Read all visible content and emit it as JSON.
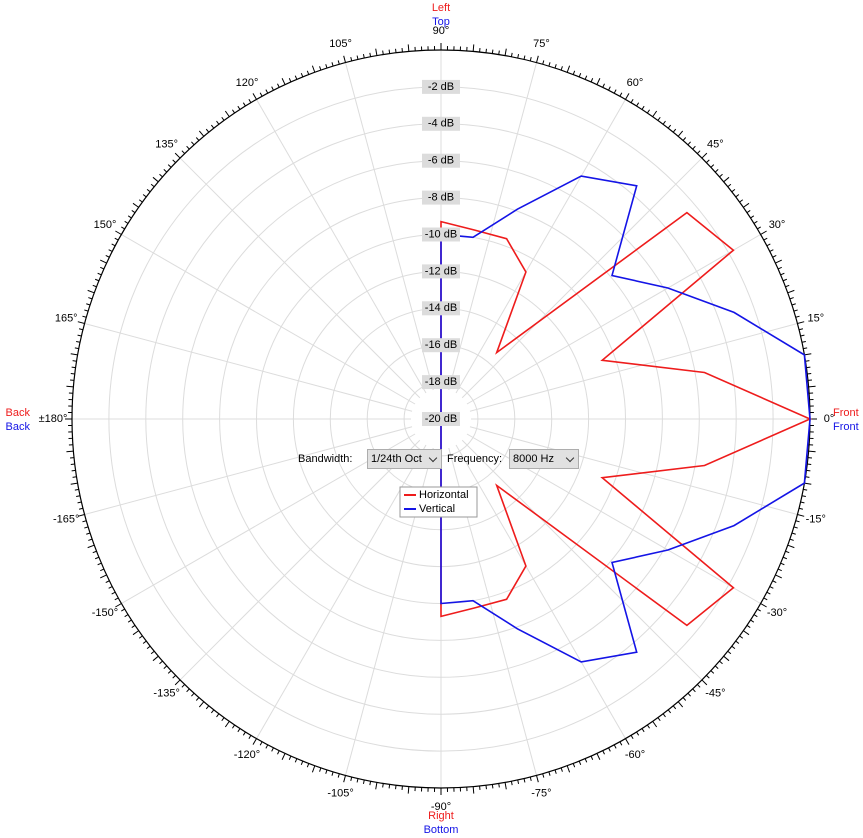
{
  "chart_data": {
    "type": "polar",
    "theta": [
      -90,
      -80,
      -70,
      -60,
      -50,
      -40,
      -30,
      -20,
      -10,
      0,
      10,
      20,
      30,
      40,
      50,
      60,
      70,
      80,
      90,
      180
    ],
    "series": [
      {
        "name": "Horizontal",
        "color": "#ee1c1c",
        "values": [
          -9.3,
          -9.6,
          -9.6,
          -10.8,
          -15.3,
          -2.6,
          -1.7,
          -10.7,
          -5.5,
          0,
          -5.5,
          -10.7,
          -1.7,
          -2.6,
          -15.3,
          -10.8,
          -9.6,
          -9.6,
          -9.3,
          -20
        ]
      },
      {
        "name": "Vertical",
        "color": "#1414e6",
        "values": [
          -10,
          -10,
          -7.9,
          -4.8,
          -3.5,
          -7.9,
          -5.8,
          -3.1,
          0,
          0,
          0,
          -3.1,
          -5.8,
          -7.9,
          -3.5,
          -4.8,
          -7.9,
          -10,
          -10,
          -20
        ]
      }
    ],
    "rlim": [
      -20,
      0
    ],
    "rticks": [
      {
        "value": -2,
        "label": "-2 dB"
      },
      {
        "value": -4,
        "label": "-4 dB"
      },
      {
        "value": -6,
        "label": "-6 dB"
      },
      {
        "value": -8,
        "label": "-8 dB"
      },
      {
        "value": -10,
        "label": "-10 dB"
      },
      {
        "value": -12,
        "label": "-12 dB"
      },
      {
        "value": -14,
        "label": "-14 dB"
      },
      {
        "value": -16,
        "label": "-16 dB"
      },
      {
        "value": -18,
        "label": "-18 dB"
      },
      {
        "value": -20,
        "label": "-20 dB"
      }
    ],
    "thetaticks": [
      {
        "value": 0,
        "label": "0°"
      },
      {
        "value": 15,
        "label": "15°"
      },
      {
        "value": 30,
        "label": "30°"
      },
      {
        "value": 45,
        "label": "45°"
      },
      {
        "value": 60,
        "label": "60°"
      },
      {
        "value": 75,
        "label": "75°"
      },
      {
        "value": 90,
        "label": "90°"
      },
      {
        "value": 105,
        "label": "105°"
      },
      {
        "value": 120,
        "label": "120°"
      },
      {
        "value": 135,
        "label": "135°"
      },
      {
        "value": 150,
        "label": "150°"
      },
      {
        "value": 165,
        "label": "165°"
      },
      {
        "value": 180,
        "label": "±180°"
      },
      {
        "value": -165,
        "label": "-165°"
      },
      {
        "value": -150,
        "label": "-150°"
      },
      {
        "value": -135,
        "label": "-135°"
      },
      {
        "value": -120,
        "label": "-120°"
      },
      {
        "value": -105,
        "label": "-105°"
      },
      {
        "value": -90,
        "label": "-90°"
      },
      {
        "value": -75,
        "label": "-75°"
      },
      {
        "value": -60,
        "label": "-60°"
      },
      {
        "value": -45,
        "label": "-45°"
      },
      {
        "value": -30,
        "label": "-30°"
      },
      {
        "value": -15,
        "label": "-15°"
      }
    ],
    "grid": true,
    "direction_labels": [
      {
        "position": "top",
        "lines": [
          "Left",
          "Top"
        ]
      },
      {
        "position": "bottom",
        "lines": [
          "Right",
          "Bottom"
        ]
      },
      {
        "position": "right",
        "lines": [
          "Front",
          "Front"
        ]
      },
      {
        "position": "left",
        "lines": [
          "Back",
          "Back"
        ]
      }
    ]
  },
  "controls": {
    "bandwidth_label": "Bandwidth:",
    "bandwidth": "1/24th Oct",
    "frequency_label": "Frequency:",
    "frequency": "8000 Hz"
  }
}
